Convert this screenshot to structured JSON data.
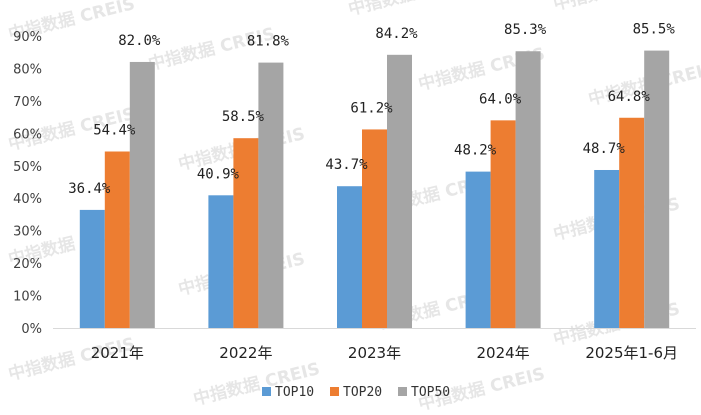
{
  "watermark": "中指数据 CREIS",
  "chart_data": {
    "type": "bar",
    "title": "",
    "xlabel": "",
    "ylabel": "",
    "ylim": [
      0,
      90
    ],
    "yticks": [
      "0%",
      "10%",
      "20%",
      "30%",
      "40%",
      "50%",
      "60%",
      "70%",
      "80%",
      "90%"
    ],
    "categories": [
      "2021年",
      "2022年",
      "2023年",
      "2024年",
      "2025年1-6月"
    ],
    "series": [
      {
        "name": "TOP10",
        "color": "#5b9bd5",
        "values": [
          36.4,
          40.9,
          43.7,
          48.2,
          48.7
        ],
        "labels": [
          "36.4%",
          "40.9%",
          "43.7%",
          "48.2%",
          "48.7%"
        ]
      },
      {
        "name": "TOP20",
        "color": "#ed7d31",
        "values": [
          54.4,
          58.5,
          61.2,
          64.0,
          64.8
        ],
        "labels": [
          "54.4%",
          "58.5%",
          "61.2%",
          "64.0%",
          "64.8%"
        ]
      },
      {
        "name": "TOP50",
        "color": "#a5a5a5",
        "values": [
          82.0,
          81.8,
          84.2,
          85.3,
          85.5
        ],
        "labels": [
          "82.0%",
          "81.8%",
          "84.2%",
          "85.3%",
          "85.5%"
        ]
      }
    ],
    "legend": "bottom",
    "grid": false
  }
}
